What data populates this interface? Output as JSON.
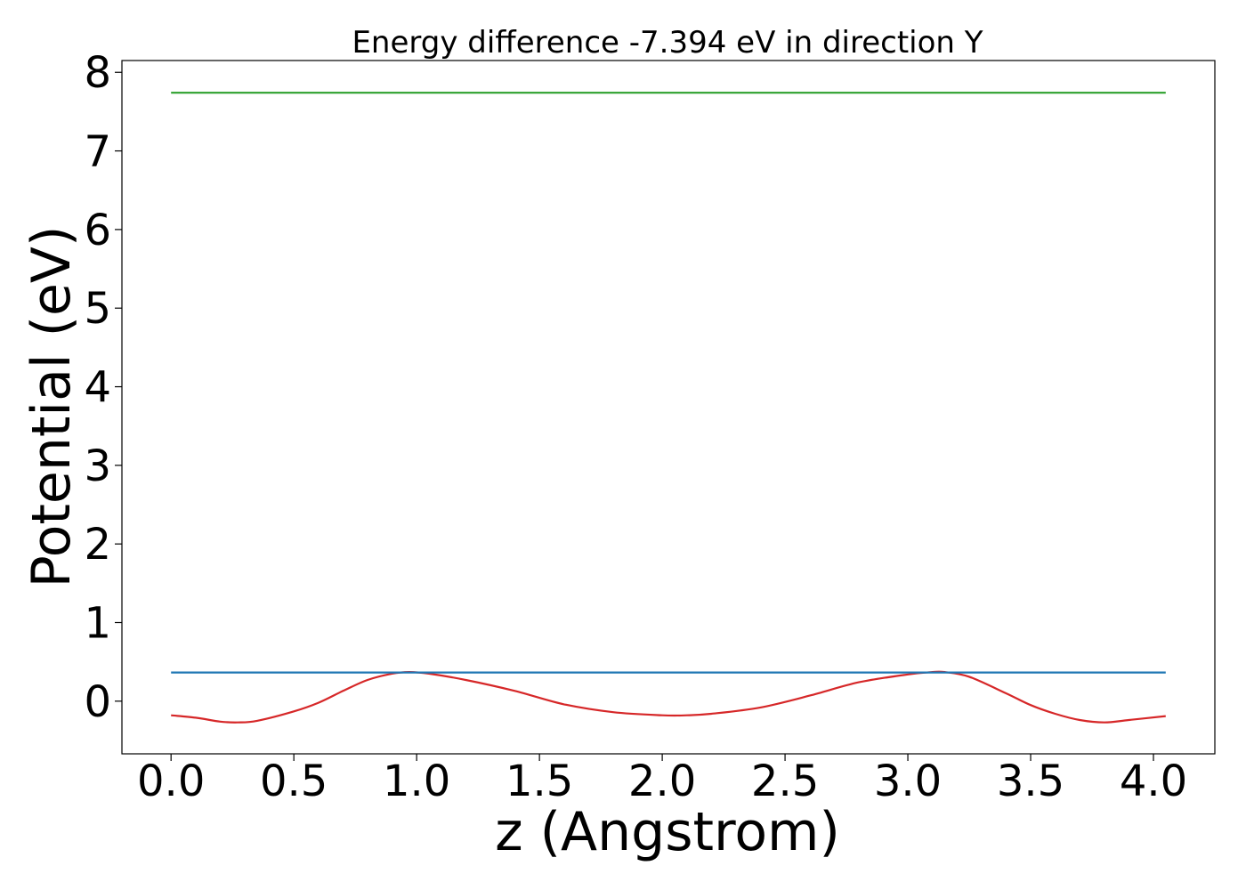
{
  "chart_data": {
    "type": "line",
    "title": "Energy difference -7.394 eV in direction Y",
    "xlabel": "z (Angstrom)",
    "ylabel": "Potential (eV)",
    "xlim": [
      -0.2,
      4.25
    ],
    "ylim": [
      -0.67,
      8.15
    ],
    "x_ticks": [
      0.0,
      0.5,
      1.0,
      1.5,
      2.0,
      2.5,
      3.0,
      3.5,
      4.0
    ],
    "x_tick_labels": [
      "0.0",
      "0.5",
      "1.0",
      "1.5",
      "2.0",
      "2.5",
      "3.0",
      "3.5",
      "4.0"
    ],
    "y_ticks": [
      0,
      1,
      2,
      3,
      4,
      5,
      6,
      7,
      8
    ],
    "y_tick_labels": [
      "0",
      "1",
      "2",
      "3",
      "4",
      "5",
      "6",
      "7",
      "8"
    ],
    "grid": false,
    "series": [
      {
        "color": "#d62728",
        "x": [
          0.0,
          0.1,
          0.2,
          0.27,
          0.35,
          0.5,
          0.6,
          0.7,
          0.8,
          0.9,
          0.97,
          1.05,
          1.2,
          1.4,
          1.6,
          1.8,
          2.0,
          2.1,
          2.2,
          2.4,
          2.6,
          2.8,
          3.0,
          3.1,
          3.15,
          3.25,
          3.4,
          3.5,
          3.6,
          3.7,
          3.8,
          3.9,
          4.05
        ],
        "y": [
          -0.18,
          -0.21,
          -0.26,
          -0.27,
          -0.25,
          -0.13,
          -0.02,
          0.13,
          0.27,
          0.35,
          0.37,
          0.35,
          0.27,
          0.13,
          -0.04,
          -0.14,
          -0.18,
          -0.18,
          -0.16,
          -0.08,
          0.07,
          0.24,
          0.34,
          0.37,
          0.37,
          0.31,
          0.1,
          -0.05,
          -0.16,
          -0.24,
          -0.27,
          -0.24,
          -0.19
        ]
      },
      {
        "color": "#1f77b4",
        "x": [
          0.0,
          4.05
        ],
        "y": [
          0.365,
          0.365
        ]
      },
      {
        "color": "#2ca02c",
        "x": [
          0.0,
          4.05
        ],
        "y": [
          7.74,
          7.74
        ]
      }
    ]
  }
}
